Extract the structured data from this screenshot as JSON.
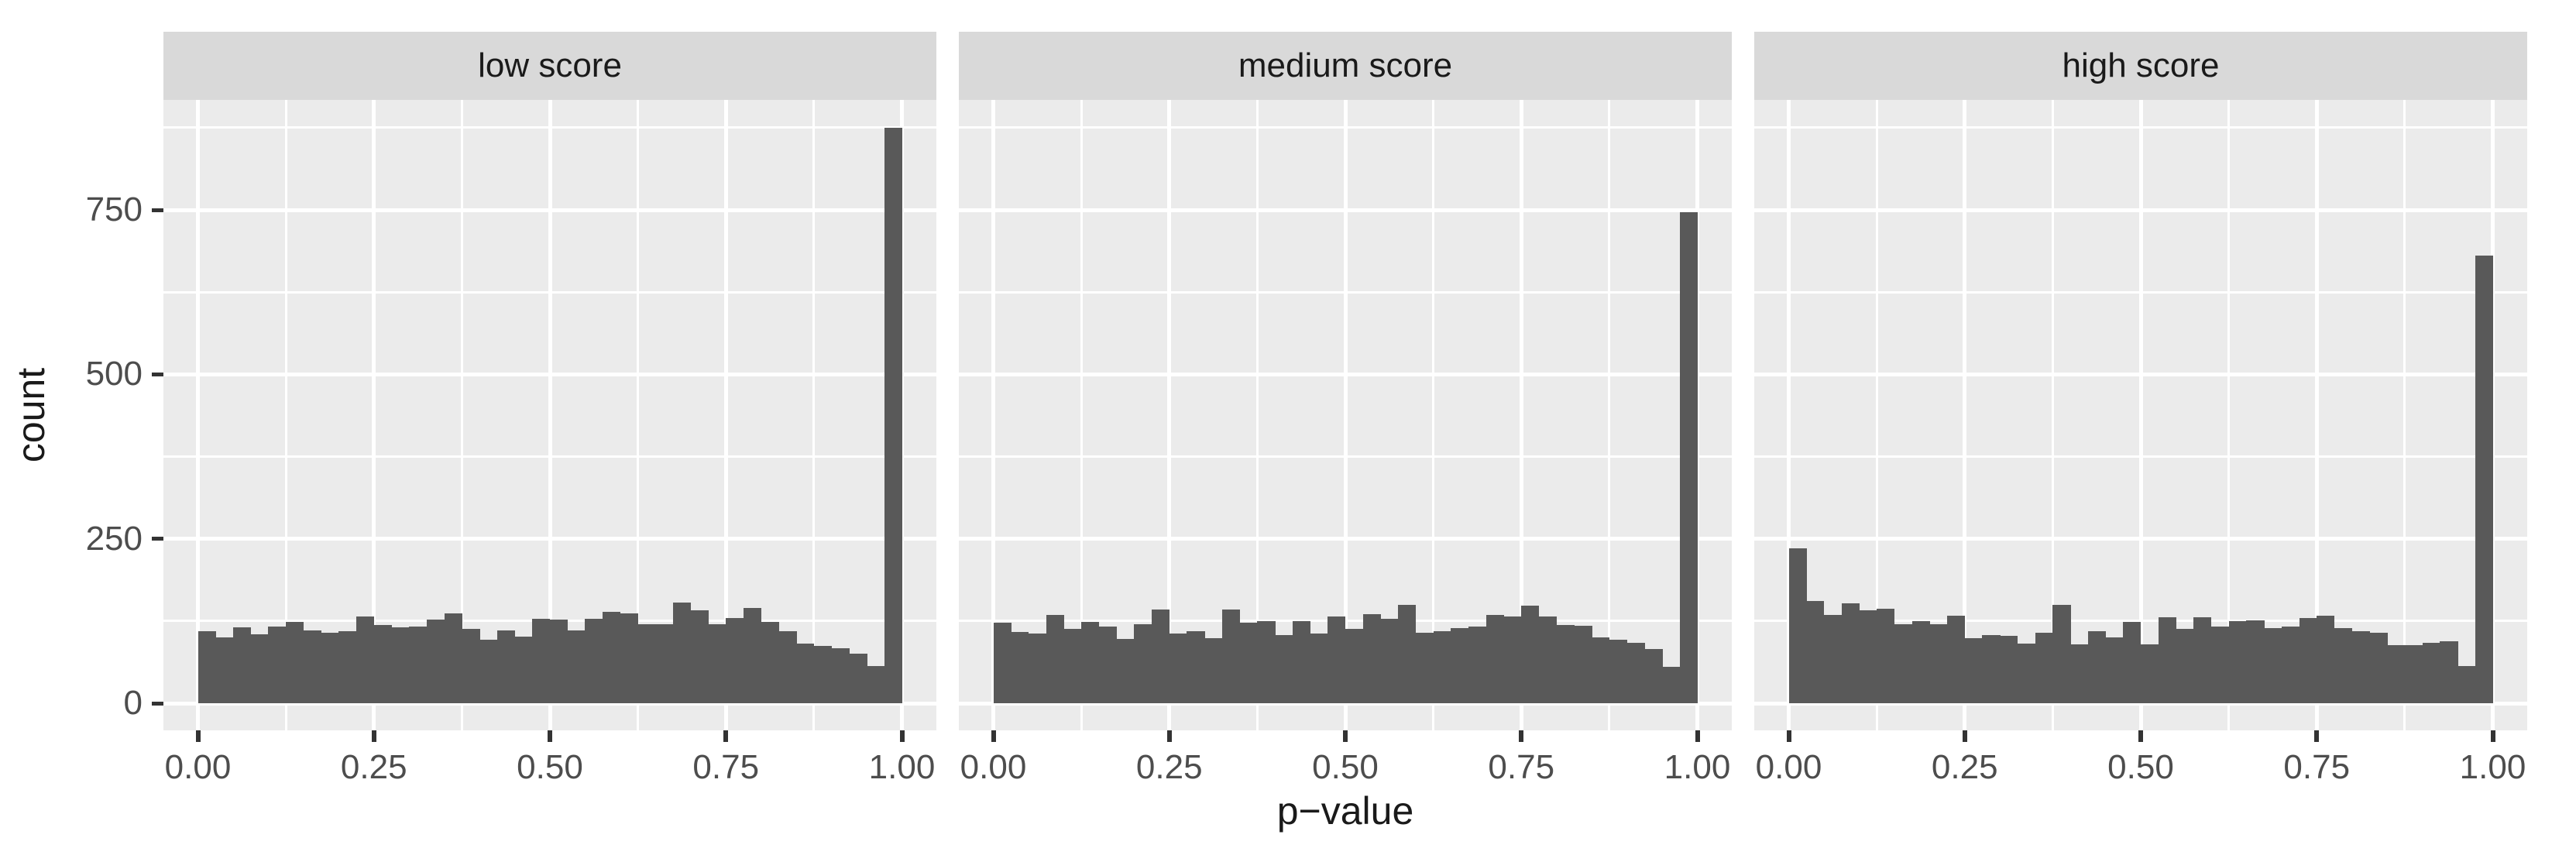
{
  "chart_data": {
    "type": "bar",
    "subtype": "faceted-histogram",
    "xlabel": "p−value",
    "ylabel": "count",
    "x_tick_labels": [
      "0.00",
      "0.25",
      "0.50",
      "0.75",
      "1.00"
    ],
    "x_tick_values": [
      0,
      0.25,
      0.5,
      0.75,
      1.0
    ],
    "y_tick_labels": [
      "0",
      "250",
      "500",
      "750"
    ],
    "y_tick_values": [
      0,
      250,
      500,
      750
    ],
    "y_minor_gridlines": [
      125,
      375,
      625,
      875
    ],
    "x_minor_gridlines": [
      0.125,
      0.375,
      0.625,
      0.875
    ],
    "xlim": [
      -0.049,
      1.049
    ],
    "ylim": [
      0,
      917
    ],
    "grid": "white major and minor gridlines on gray panel",
    "legend_position": "none",
    "bin_start": 0,
    "bin_width": 0.025,
    "n_bins": 40,
    "facets": [
      {
        "label": "low score",
        "counts": [
          109,
          100,
          115,
          105,
          116,
          124,
          111,
          107,
          110,
          132,
          119,
          115,
          117,
          127,
          136,
          113,
          97,
          111,
          101,
          128,
          127,
          111,
          128,
          139,
          136,
          120,
          120,
          153,
          141,
          120,
          130,
          145,
          124,
          109,
          91,
          87,
          84,
          75,
          57,
          875
        ]
      },
      {
        "label": "medium score",
        "counts": [
          123,
          108,
          106,
          134,
          113,
          124,
          116,
          98,
          120,
          142,
          106,
          109,
          99,
          143,
          122,
          125,
          104,
          125,
          106,
          132,
          113,
          135,
          128,
          150,
          107,
          110,
          114,
          116,
          134,
          132,
          148,
          132,
          119,
          118,
          100,
          96,
          92,
          82,
          55,
          746
        ]
      },
      {
        "label": "high score",
        "counts": [
          236,
          155,
          134,
          152,
          141,
          144,
          120,
          125,
          120,
          133,
          99,
          104,
          102,
          91,
          107,
          150,
          89,
          109,
          100,
          124,
          90,
          131,
          113,
          131,
          117,
          125,
          126,
          114,
          116,
          130,
          133,
          114,
          109,
          107,
          88,
          88,
          92,
          94,
          57,
          680
        ]
      }
    ],
    "colors": {
      "bar": "#595959",
      "panel_background": "#EBEBEB",
      "strip_background": "#D9D9D9",
      "gridline": "#FFFFFF",
      "tick_label": "#4D4D4D",
      "axis_title": "#1A1A1A",
      "strip_text": "#1A1A1A",
      "tick_mark": "#333333",
      "figure_background": "#FFFFFF"
    }
  }
}
